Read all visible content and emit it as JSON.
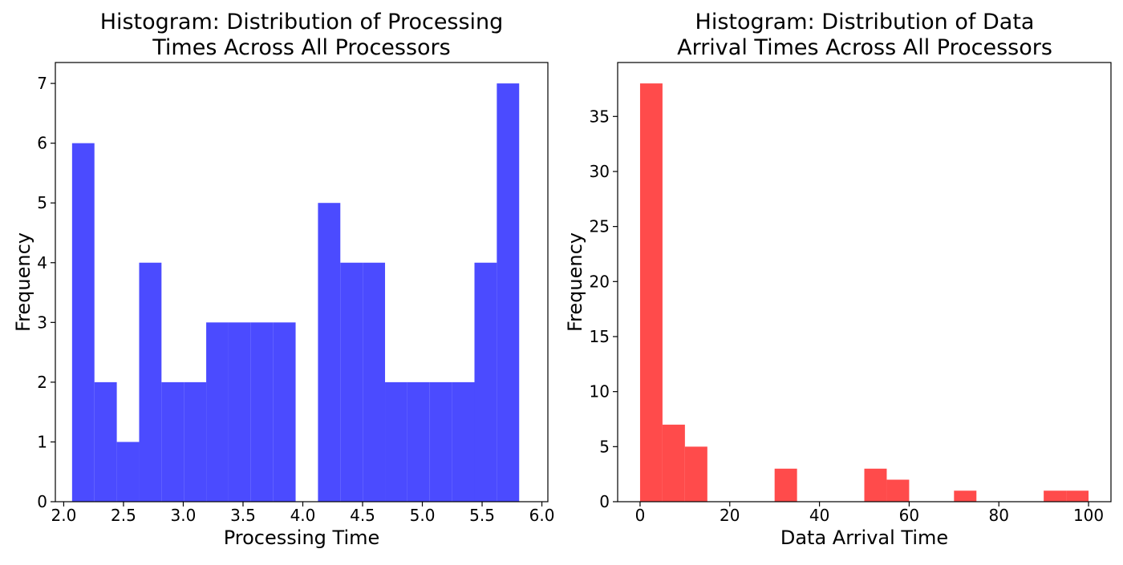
{
  "chart_data": [
    {
      "type": "bar",
      "title": "Histogram: Distribution of Processing Times Across All Processors",
      "title_lines": [
        "Histogram: Distribution of Processing",
        "Times Across All Processors"
      ],
      "xlabel": "Processing Time",
      "ylabel": "Frequency",
      "xlim": [
        1.93,
        6.05
      ],
      "ylim": [
        0,
        7.35
      ],
      "xticks": [
        2.0,
        2.5,
        3.0,
        3.5,
        4.0,
        4.5,
        5.0,
        5.5,
        6.0
      ],
      "xtick_labels": [
        "2.0",
        "2.5",
        "3.0",
        "3.5",
        "4.0",
        "4.5",
        "5.0",
        "5.5",
        "6.0"
      ],
      "yticks": [
        0,
        1,
        2,
        3,
        4,
        5,
        6,
        7
      ],
      "ytick_labels": [
        "0",
        "1",
        "2",
        "3",
        "4",
        "5",
        "6",
        "7"
      ],
      "bin_edges": [
        2.07,
        2.257,
        2.444,
        2.631,
        2.818,
        3.005,
        3.192,
        3.379,
        3.566,
        3.753,
        3.94,
        4.127,
        4.314,
        4.501,
        4.688,
        4.875,
        5.062,
        5.249,
        5.436,
        5.623,
        5.81
      ],
      "bin_width": 0.187,
      "counts": [
        6,
        2,
        1,
        4,
        2,
        2,
        3,
        3,
        3,
        3,
        0,
        5,
        4,
        4,
        2,
        2,
        2,
        2,
        4,
        7
      ],
      "color": "#4b4bff",
      "grid": false
    },
    {
      "type": "bar",
      "title": "Histogram: Distribution of Data Arrival Times Across All Processors",
      "title_lines": [
        "Histogram: Distribution of Data",
        "Arrival Times Across All Processors"
      ],
      "xlabel": "Data Arrival Time",
      "ylabel": "Frequency",
      "xlim": [
        -5,
        105
      ],
      "ylim": [
        0,
        39.9
      ],
      "xticks": [
        0,
        20,
        40,
        60,
        80,
        100
      ],
      "xtick_labels": [
        "0",
        "20",
        "40",
        "60",
        "80",
        "100"
      ],
      "yticks": [
        0,
        5,
        10,
        15,
        20,
        25,
        30,
        35
      ],
      "ytick_labels": [
        "0",
        "5",
        "10",
        "15",
        "20",
        "25",
        "30",
        "35"
      ],
      "bin_edges": [
        0,
        5,
        10,
        15,
        20,
        25,
        30,
        35,
        40,
        45,
        50,
        55,
        60,
        65,
        70,
        75,
        80,
        85,
        90,
        95,
        100
      ],
      "bin_width": 5,
      "counts": [
        38,
        7,
        5,
        0,
        0,
        0,
        3,
        0,
        0,
        0,
        3,
        2,
        0,
        0,
        1,
        0,
        0,
        0,
        1,
        1
      ],
      "color": "#ff4b4b",
      "grid": false
    }
  ]
}
